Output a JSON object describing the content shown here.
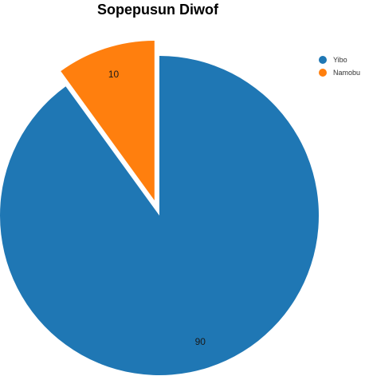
{
  "chart_data": {
    "type": "pie",
    "title": "Sopepusun Diwof",
    "slices": [
      {
        "label": "Yibo",
        "value": 90,
        "color": "#1f77b4",
        "exploded": false
      },
      {
        "label": "Namobu",
        "value": 10,
        "color": "#ff7f0e",
        "exploded": true
      }
    ],
    "legend_position": "top-right",
    "start_angle_deg": 0,
    "direction": "clockwise"
  }
}
